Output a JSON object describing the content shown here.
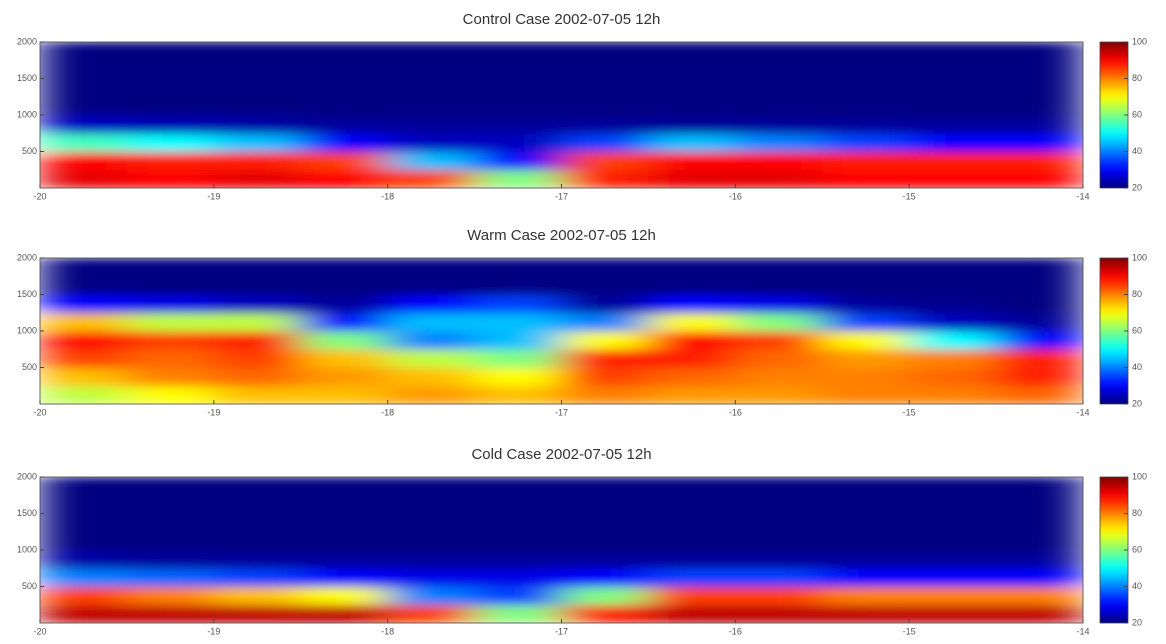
{
  "chart_data": [
    {
      "type": "heatmap",
      "title": "Control Case 2002-07-05 12h",
      "colormap": "jet",
      "xbins": [
        -20,
        -19.5,
        -19,
        -18.5,
        -18,
        -17.5,
        -17,
        -16.5,
        -16,
        -15.5,
        -15,
        -14.5,
        -14
      ],
      "ybins": [
        0,
        250,
        500,
        750,
        1000,
        1250,
        1500,
        1750,
        2000
      ],
      "values": [
        [
          92,
          90,
          92,
          90,
          85,
          60,
          88,
          92,
          92,
          90,
          90,
          90
        ],
        [
          90,
          88,
          88,
          85,
          45,
          30,
          85,
          90,
          90,
          88,
          88,
          88
        ],
        [
          55,
          50,
          45,
          30,
          25,
          25,
          35,
          45,
          40,
          35,
          30,
          30
        ],
        [
          25,
          24,
          23,
          22,
          22,
          22,
          22,
          22,
          22,
          22,
          22,
          22
        ],
        [
          20,
          20,
          20,
          20,
          20,
          20,
          20,
          20,
          20,
          20,
          20,
          20
        ],
        [
          20,
          20,
          20,
          20,
          20,
          20,
          20,
          20,
          20,
          20,
          20,
          20
        ],
        [
          20,
          20,
          20,
          20,
          20,
          20,
          20,
          20,
          20,
          20,
          20,
          20
        ],
        [
          20,
          20,
          20,
          20,
          20,
          20,
          20,
          20,
          20,
          20,
          20,
          20
        ]
      ],
      "xlim": [
        -20,
        -14
      ],
      "ylim": [
        0,
        2000
      ],
      "xticks": [
        -20,
        -19,
        -18,
        -17,
        -16,
        -15,
        -14
      ],
      "yticks": [
        500,
        1000,
        1500,
        2000
      ],
      "clim": [
        20,
        100
      ],
      "cticks": [
        20,
        40,
        60,
        80,
        100
      ]
    },
    {
      "type": "heatmap",
      "title": "Warm Case 2002-07-05 12h",
      "colormap": "jet",
      "xbins": [
        -20,
        -19.5,
        -19,
        -18.5,
        -18,
        -17.5,
        -17,
        -16.5,
        -16,
        -15.5,
        -15,
        -14.5,
        -14
      ],
      "ybins": [
        0,
        250,
        500,
        750,
        1000,
        1250,
        1500,
        1750,
        2000
      ],
      "values": [
        [
          65,
          70,
          75,
          75,
          78,
          75,
          80,
          78,
          78,
          80,
          80,
          82
        ],
        [
          75,
          80,
          82,
          78,
          75,
          70,
          85,
          82,
          80,
          80,
          82,
          88
        ],
        [
          85,
          82,
          85,
          75,
          65,
          60,
          88,
          88,
          82,
          78,
          80,
          88
        ],
        [
          90,
          85,
          88,
          60,
          40,
          45,
          70,
          90,
          85,
          70,
          50,
          30
        ],
        [
          75,
          65,
          65,
          30,
          45,
          45,
          40,
          70,
          60,
          35,
          25,
          22
        ],
        [
          30,
          28,
          25,
          22,
          30,
          35,
          22,
          30,
          28,
          22,
          21,
          20
        ],
        [
          20,
          20,
          20,
          20,
          20,
          20,
          20,
          20,
          20,
          20,
          20,
          20
        ],
        [
          20,
          20,
          20,
          20,
          20,
          20,
          20,
          20,
          20,
          20,
          20,
          20
        ]
      ],
      "xlim": [
        -20,
        -14
      ],
      "ylim": [
        0,
        2000
      ],
      "xticks": [
        -20,
        -19,
        -18,
        -17,
        -16,
        -15,
        -14
      ],
      "yticks": [
        500,
        1000,
        1500,
        2000
      ],
      "clim": [
        20,
        100
      ],
      "cticks": [
        20,
        40,
        60,
        80,
        100
      ]
    },
    {
      "type": "heatmap",
      "title": "Cold Case 2002-07-05 12h",
      "colormap": "jet",
      "xbins": [
        -20,
        -19.5,
        -19,
        -18.5,
        -18,
        -17.5,
        -17,
        -16.5,
        -16,
        -15.5,
        -15,
        -14.5,
        -14
      ],
      "ybins": [
        0,
        250,
        500,
        750,
        1000,
        1250,
        1500,
        1750,
        2000
      ],
      "values": [
        [
          95,
          95,
          95,
          95,
          85,
          60,
          88,
          95,
          95,
          95,
          95,
          95
        ],
        [
          85,
          80,
          75,
          70,
          40,
          35,
          60,
          85,
          85,
          80,
          80,
          80
        ],
        [
          40,
          38,
          35,
          30,
          28,
          28,
          30,
          35,
          35,
          30,
          30,
          30
        ],
        [
          23,
          22,
          22,
          22,
          22,
          22,
          22,
          22,
          22,
          22,
          22,
          22
        ],
        [
          20,
          20,
          20,
          20,
          20,
          20,
          20,
          20,
          20,
          20,
          20,
          20
        ],
        [
          20,
          20,
          20,
          20,
          20,
          20,
          20,
          20,
          20,
          20,
          20,
          20
        ],
        [
          20,
          20,
          20,
          20,
          20,
          20,
          20,
          20,
          20,
          20,
          20,
          20
        ],
        [
          20,
          20,
          20,
          20,
          20,
          20,
          20,
          20,
          20,
          20,
          20,
          20
        ]
      ],
      "xlim": [
        -20,
        -14
      ],
      "ylim": [
        0,
        2000
      ],
      "xticks": [
        -20,
        -19,
        -18,
        -17,
        -16,
        -15,
        -14
      ],
      "yticks": [
        500,
        1000,
        1500,
        2000
      ],
      "clim": [
        20,
        100
      ],
      "cticks": [
        20,
        40,
        60,
        80,
        100
      ]
    }
  ]
}
